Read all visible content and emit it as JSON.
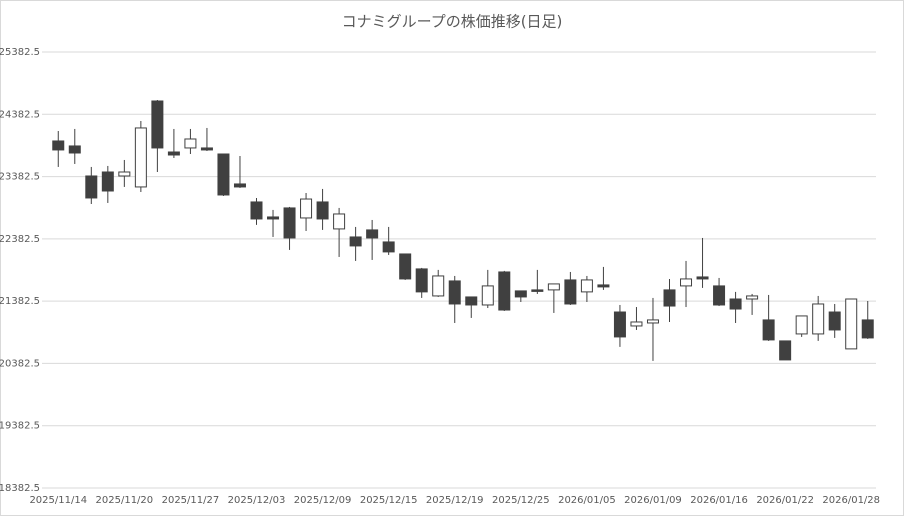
{
  "chart_data": {
    "type": "candlestick",
    "title": "コナミグループの株価推移(日足)",
    "categories": [
      "2025/11/14",
      null,
      null,
      null,
      "2025/11/20",
      null,
      null,
      null,
      "2025/11/27",
      null,
      null,
      null,
      "2025/12/03",
      null,
      null,
      null,
      "2025/12/09",
      null,
      null,
      null,
      "2025/12/15",
      null,
      null,
      null,
      "2025/12/19",
      null,
      null,
      null,
      "2025/12/25",
      null,
      null,
      null,
      "2026/01/05",
      null,
      null,
      null,
      "2026/01/09",
      null,
      null,
      null,
      "2026/01/16",
      null,
      null,
      null,
      "2026/01/22",
      null,
      null,
      null,
      "2026/01/28",
      null
    ],
    "open": [
      23954,
      23874,
      23392,
      23456,
      23392,
      23216,
      24596,
      23777,
      23842,
      23842,
      23745,
      23264,
      22975,
      22734,
      22879,
      22718,
      22975,
      22542,
      22413,
      22526,
      22333,
      22140,
      21900,
      21466,
      21707,
      21450,
      21321,
      21851,
      21547,
      21563,
      21563,
      21723,
      21531,
      21643,
      21208,
      20984,
      21032,
      21563,
      21627,
      21771,
      21627,
      21417,
      21417,
      21081,
      20744,
      20856,
      20856,
      21208,
      20616,
      21081
    ],
    "high": [
      24114,
      24147,
      23537,
      23553,
      23649,
      24275,
      24612,
      24147,
      24147,
      24163,
      23745,
      23713,
      23039,
      22847,
      22895,
      23119,
      23184,
      22879,
      22574,
      22686,
      22574,
      22140,
      21916,
      21884,
      21787,
      21450,
      21884,
      21868,
      21547,
      21884,
      21659,
      21851,
      21787,
      21932,
      21321,
      21288,
      21434,
      21739,
      22028,
      22397,
      21755,
      21531,
      21498,
      21482,
      20744,
      21145,
      21466,
      21337,
      21417,
      21385
    ],
    "low": [
      23537,
      23585,
      22942,
      22959,
      23216,
      23135,
      23456,
      23681,
      23745,
      23793,
      23071,
      23200,
      22606,
      22413,
      22205,
      22509,
      22526,
      22092,
      22028,
      22044,
      22124,
      21723,
      21434,
      21450,
      21032,
      21113,
      21272,
      21225,
      21369,
      21498,
      21193,
      21321,
      21369,
      21563,
      20648,
      20920,
      20423,
      21048,
      21288,
      21595,
      21304,
      21032,
      21161,
      20744,
      20439,
      20808,
      20744,
      20792,
      20616,
      20776
    ],
    "close": [
      23810,
      23761,
      23039,
      23151,
      23456,
      24163,
      23842,
      23729,
      23986,
      23810,
      23087,
      23216,
      22702,
      22702,
      22397,
      23022,
      22702,
      22782,
      22269,
      22397,
      22173,
      21739,
      21531,
      21787,
      21337,
      21321,
      21627,
      21240,
      21450,
      21547,
      21659,
      21337,
      21723,
      21611,
      20808,
      21048,
      21081,
      21304,
      21739,
      21739,
      21321,
      21256,
      21466,
      20760,
      20439,
      21145,
      21337,
      20920,
      21417,
      20792
    ],
    "up_color": "#ffffff",
    "down_color": "#404040",
    "ylim": [
      18382.5,
      25382.5
    ],
    "yticks": [
      18382.5,
      19382.5,
      20382.5,
      21382.5,
      22382.5,
      23382.5,
      24382.5,
      25382.5
    ],
    "grid": true
  }
}
